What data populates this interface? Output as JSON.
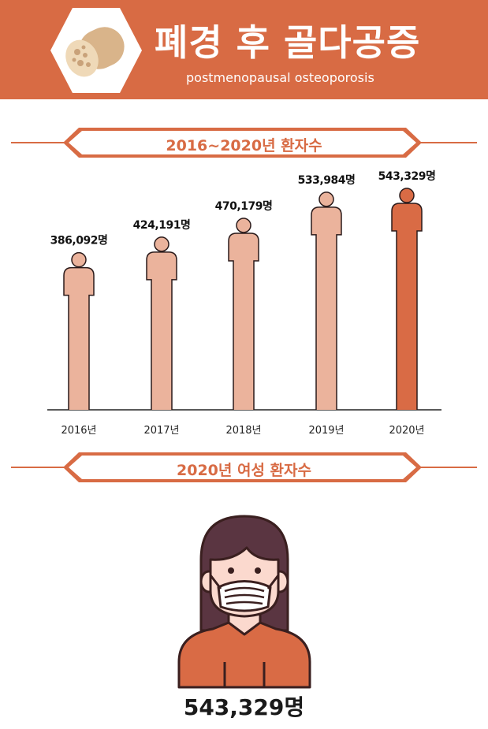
{
  "header": {
    "title": "폐경 후 골다공증",
    "subtitle": "postmenopausal osteoporosis",
    "icon": "bone-cross-section-icon"
  },
  "section1": {
    "title": "2016~2020년 환자수"
  },
  "section2": {
    "title": "2020년 여성 환자수",
    "total": "543,329명",
    "icon": "woman-with-mask-icon"
  },
  "colors": {
    "accent": "#D86B44",
    "bar_light": "#EBB39C",
    "bar_highlight": "#D96B45"
  },
  "chart_data": {
    "type": "bar",
    "title": "2016~2020년 환자수",
    "categories": [
      "2016년",
      "2017년",
      "2018년",
      "2019년",
      "2020년"
    ],
    "values": [
      386092,
      424191,
      470179,
      533984,
      543329
    ],
    "labels": [
      "386,092명",
      "424,191명",
      "470,179명",
      "533,984명",
      "543,329명"
    ],
    "highlight": "2020년",
    "grid": false
  }
}
